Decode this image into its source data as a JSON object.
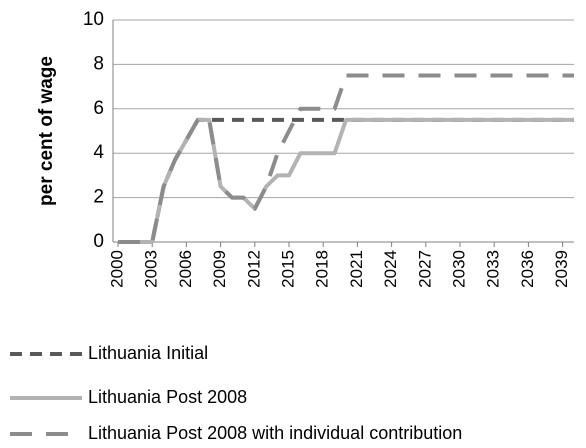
{
  "chart_data": {
    "type": "line",
    "y_label": "per cent of wage",
    "x": [
      2000,
      2001,
      2002,
      2003,
      2004,
      2005,
      2006,
      2007,
      2008,
      2009,
      2010,
      2011,
      2012,
      2013,
      2014,
      2015,
      2016,
      2017,
      2018,
      2019,
      2020,
      2021,
      2022,
      2023,
      2024,
      2025,
      2026,
      2027,
      2028,
      2029,
      2030,
      2031,
      2032,
      2033,
      2034,
      2035,
      2036,
      2037,
      2038,
      2039,
      2040
    ],
    "xlim": [
      2000,
      2040
    ],
    "xticks": [
      2000,
      2003,
      2006,
      2009,
      2012,
      2015,
      2018,
      2021,
      2024,
      2027,
      2030,
      2033,
      2036,
      2039
    ],
    "ylim": [
      0,
      10
    ],
    "yticks": [
      0,
      2,
      4,
      6,
      8,
      10
    ],
    "grid": true,
    "legend": "bottom",
    "series": [
      {
        "name": "Lithuania Initial",
        "color": "#595959",
        "values": [
          0,
          0,
          0,
          0,
          2.5,
          3.7,
          4.6,
          5.5,
          5.5,
          5.5,
          5.5,
          5.5,
          5.5,
          5.5,
          5.5,
          5.5,
          5.5,
          5.5,
          5.5,
          5.5,
          5.5,
          5.5,
          5.5,
          5.5,
          5.5,
          5.5,
          5.5,
          5.5,
          5.5,
          5.5,
          5.5,
          5.5,
          5.5,
          5.5,
          5.5,
          5.5,
          5.5,
          5.5,
          5.5,
          5.5,
          5.5
        ]
      },
      {
        "name": "Lithuania Post 2008",
        "color": "#b3b3b3",
        "values": [
          0,
          0,
          0,
          0,
          2.5,
          3.7,
          4.6,
          5.5,
          5.5,
          2.5,
          2,
          2,
          1.5,
          2.5,
          3,
          3,
          4,
          4,
          4,
          4,
          5.5,
          5.5,
          5.5,
          5.5,
          5.5,
          5.5,
          5.5,
          5.5,
          5.5,
          5.5,
          5.5,
          5.5,
          5.5,
          5.5,
          5.5,
          5.5,
          5.5,
          5.5,
          5.5,
          5.5,
          5.5
        ]
      },
      {
        "name": "Lithuania Post 2008 with individual contribution",
        "color": "#8c8c8c",
        "values": [
          0,
          0,
          0,
          0,
          2.5,
          3.7,
          4.6,
          5.5,
          5.5,
          2.5,
          2,
          2,
          1.5,
          2.5,
          4,
          5,
          6,
          6,
          6,
          6,
          7.5,
          7.5,
          7.5,
          7.5,
          7.5,
          7.5,
          7.5,
          7.5,
          7.5,
          7.5,
          7.5,
          7.5,
          7.5,
          7.5,
          7.5,
          7.5,
          7.5,
          7.5,
          7.5,
          7.5,
          7.5
        ]
      }
    ]
  }
}
